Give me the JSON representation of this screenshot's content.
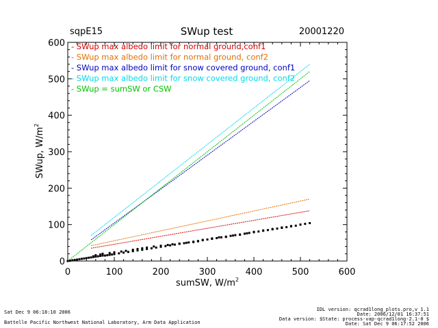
{
  "header": {
    "site": "sqpE15",
    "title": "SWup test",
    "date": "20001220"
  },
  "footer": {
    "left_line1": "Sat Dec  9 06:18:10 2006",
    "left_line2": "Battelle Pacific Northwest National Laboratory, Arm Data Application",
    "right_line1": "IDL version: qcrad1long_plots.pro,v 1.1",
    "right_line2": "Date: 2006/12/01 16:37:51",
    "right_line3": "Data version: $State: process-vap-qcrad1long-2.1-0 $",
    "right_line4": "Date: Sat Dec  9 06:17:52 2006"
  },
  "chart_data": {
    "type": "scatter",
    "title": "SWup test",
    "xlabel": "sumSW, W/m",
    "xlabel_sup": "2",
    "ylabel": "SWup, W/m",
    "ylabel_sup": "2",
    "xlim": [
      0,
      600
    ],
    "ylim": [
      0,
      600
    ],
    "xticks": [
      0,
      100,
      200,
      300,
      400,
      500,
      600
    ],
    "yticks": [
      0,
      100,
      200,
      300,
      400,
      500,
      600
    ],
    "grid": false,
    "legend_position": "top-left",
    "series": [
      {
        "name": "SWup max albedo limit for normal ground,conf1",
        "color": "#d00000",
        "kind": "line",
        "x": [
          50,
          520
        ],
        "y": [
          35,
          138
        ]
      },
      {
        "name": "SWup max albedo limit for normal ground, conf2",
        "color": "#e07000",
        "kind": "line",
        "x": [
          50,
          520
        ],
        "y": [
          42,
          170
        ]
      },
      {
        "name": "SWup max albedo limit for snow covered ground, conf1",
        "color": "#0000c0",
        "kind": "line",
        "x": [
          50,
          520
        ],
        "y": [
          58,
          495
        ]
      },
      {
        "name": "SWup max albedo limit for snow covered ground, conf2",
        "color": "#00d8e8",
        "kind": "line",
        "x": [
          50,
          520
        ],
        "y": [
          70,
          540
        ]
      },
      {
        "name": "SWup = sumSW or CSW",
        "color": "#00c000",
        "kind": "line",
        "x": [
          0,
          520
        ],
        "y": [
          0,
          520
        ]
      },
      {
        "name": "",
        "color": "#000000",
        "kind": "points",
        "x": [
          0,
          5,
          10,
          15,
          20,
          25,
          30,
          35,
          40,
          45,
          50,
          55,
          60,
          65,
          70,
          75,
          80,
          85,
          90,
          95,
          100,
          110,
          120,
          130,
          140,
          150,
          160,
          170,
          180,
          190,
          200,
          210,
          220,
          230,
          240,
          250,
          260,
          270,
          280,
          290,
          300,
          310,
          320,
          330,
          340,
          350,
          360,
          370,
          380,
          390,
          400,
          410,
          420,
          430,
          440,
          450,
          460,
          470,
          480,
          490,
          500,
          510,
          520,
          55,
          60,
          70,
          75,
          90,
          100,
          115,
          125,
          140,
          150,
          160,
          170,
          185,
          200,
          215,
          225,
          240,
          255,
          270,
          280,
          290,
          310,
          325,
          340,
          355,
          370,
          385,
          400,
          420,
          440,
          460,
          480,
          500
        ],
        "y": [
          0,
          1,
          2,
          3,
          4,
          5,
          6,
          7,
          8,
          9,
          10,
          11,
          12,
          13,
          14,
          15,
          15,
          16,
          17,
          18,
          19,
          21,
          23,
          25,
          27,
          29,
          31,
          33,
          35,
          37,
          39,
          41,
          43,
          45,
          47,
          49,
          51,
          53,
          55,
          57,
          59,
          61,
          63,
          65,
          67,
          69,
          71,
          73,
          75,
          77,
          79,
          81,
          83,
          85,
          87,
          89,
          91,
          93,
          95,
          97,
          100,
          102,
          104,
          13,
          16,
          18,
          20,
          22,
          24,
          26,
          28,
          31,
          33,
          35,
          37,
          40,
          42,
          44,
          46,
          48,
          50,
          52,
          54,
          58,
          62,
          65,
          66,
          70,
          72,
          76,
          80,
          84,
          88,
          92,
          96,
          100
        ]
      }
    ]
  }
}
